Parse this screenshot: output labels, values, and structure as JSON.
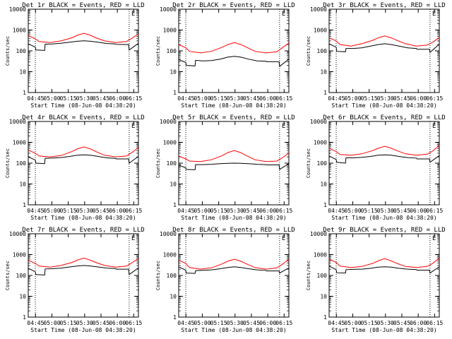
{
  "colors": {
    "events": "#000000",
    "lld": "#ff0000",
    "axis": "#000000",
    "background": "#ffffff"
  },
  "shared": {
    "xlabel": "Start Time (08-Jun-08 04:38:20)",
    "ylabel": "Counts/sec",
    "x_ticks": [
      "04:45",
      "05:00",
      "05:15",
      "05:30",
      "05:45",
      "06:00",
      "06:15"
    ],
    "x_tick_minutes": [
      6.67,
      21.67,
      36.67,
      51.67,
      66.67,
      81.67,
      96.67
    ],
    "xlim_minutes": [
      0,
      101
    ],
    "y_ticks": [
      "1",
      "10",
      "100",
      "1000",
      "10000"
    ],
    "ylim": [
      1,
      10000
    ],
    "yscale": "log",
    "dotted_vlines_minutes": [
      6.5,
      92.5
    ]
  },
  "chart_data": [
    {
      "type": "line",
      "title": "Det 1r BLACK = Events, RED = LLD",
      "legend_corner": "E",
      "series": [
        {
          "name": "Events",
          "x": [
            0,
            6.5,
            7,
            15,
            15.5,
            22,
            30,
            38,
            45,
            51,
            57,
            64,
            72,
            80,
            80.5,
            92,
            92.5,
            101
          ],
          "y": [
            220,
            150,
            110,
            105,
            210,
            215,
            230,
            260,
            290,
            305,
            290,
            260,
            225,
            215,
            205,
            200,
            110,
            230
          ]
        },
        {
          "name": "LLD",
          "x": [
            0,
            6.5,
            10,
            20,
            30,
            40,
            45,
            51,
            57,
            62,
            70,
            80,
            90,
            95,
            101
          ],
          "y": [
            540,
            380,
            280,
            250,
            300,
            420,
            560,
            700,
            560,
            420,
            300,
            250,
            280,
            400,
            650
          ]
        }
      ]
    },
    {
      "type": "line",
      "title": "Det 2r BLACK = Events, RED = LLD",
      "legend_corner": "E",
      "series": [
        {
          "name": "Events",
          "x": [
            0,
            6.5,
            7,
            15,
            15.5,
            22,
            30,
            38,
            45,
            51,
            57,
            64,
            72,
            80,
            80.5,
            92,
            92.5,
            101
          ],
          "y": [
            38,
            28,
            20,
            19,
            35,
            33,
            34,
            40,
            50,
            55,
            50,
            40,
            33,
            32,
            30,
            30,
            18,
            40
          ]
        },
        {
          "name": "LLD",
          "x": [
            0,
            6.5,
            10,
            20,
            30,
            40,
            45,
            51,
            57,
            62,
            70,
            80,
            90,
            95,
            101
          ],
          "y": [
            200,
            140,
            95,
            80,
            95,
            150,
            200,
            250,
            200,
            150,
            95,
            80,
            90,
            140,
            240
          ]
        }
      ]
    },
    {
      "type": "line",
      "title": "Det 3r BLACK = Events, RED = LLD",
      "legend_corner": "E",
      "series": [
        {
          "name": "Events",
          "x": [
            0,
            6.5,
            7,
            15,
            15.5,
            22,
            30,
            38,
            45,
            51,
            57,
            64,
            72,
            80,
            80.5,
            92,
            92.5,
            101
          ],
          "y": [
            220,
            150,
            95,
            90,
            130,
            130,
            140,
            170,
            200,
            220,
            200,
            170,
            140,
            130,
            120,
            120,
            85,
            210
          ]
        },
        {
          "name": "LLD",
          "x": [
            0,
            6.5,
            10,
            20,
            30,
            40,
            45,
            51,
            57,
            62,
            70,
            80,
            90,
            95,
            101
          ],
          "y": [
            420,
            300,
            200,
            170,
            220,
            320,
            420,
            520,
            420,
            320,
            220,
            170,
            190,
            260,
            430
          ]
        }
      ]
    },
    {
      "type": "line",
      "title": "Det 4r BLACK = Events, RED = LLD",
      "legend_corner": "E",
      "series": [
        {
          "name": "Events",
          "x": [
            0,
            6.5,
            7,
            15,
            15.5,
            22,
            30,
            38,
            45,
            51,
            57,
            64,
            72,
            80,
            80.5,
            92,
            92.5,
            101
          ],
          "y": [
            200,
            140,
            100,
            95,
            170,
            175,
            185,
            210,
            240,
            250,
            240,
            210,
            180,
            170,
            160,
            160,
            100,
            210
          ]
        },
        {
          "name": "LLD",
          "x": [
            0,
            6.5,
            10,
            20,
            30,
            40,
            45,
            51,
            57,
            62,
            70,
            80,
            90,
            95,
            101
          ],
          "y": [
            420,
            300,
            220,
            200,
            230,
            360,
            480,
            600,
            480,
            360,
            240,
            200,
            220,
            320,
            560
          ]
        }
      ]
    },
    {
      "type": "line",
      "title": "Det 5r BLACK = Events, RED = LLD",
      "legend_corner": "E",
      "series": [
        {
          "name": "Events",
          "x": [
            0,
            6.5,
            7,
            15,
            15.5,
            22,
            30,
            38,
            45,
            51,
            57,
            64,
            72,
            80,
            80.5,
            92,
            92.5,
            101
          ],
          "y": [
            80,
            60,
            50,
            48,
            85,
            85,
            88,
            95,
            98,
            100,
            98,
            95,
            88,
            85,
            82,
            82,
            50,
            95
          ]
        },
        {
          "name": "LLD",
          "x": [
            0,
            6.5,
            10,
            20,
            30,
            40,
            45,
            51,
            57,
            62,
            70,
            80,
            90,
            95,
            101
          ],
          "y": [
            220,
            160,
            125,
            120,
            145,
            230,
            320,
            400,
            320,
            230,
            145,
            120,
            125,
            180,
            300
          ]
        }
      ]
    },
    {
      "type": "line",
      "title": "Det 6r BLACK = Events, RED = LLD",
      "legend_corner": "E",
      "series": [
        {
          "name": "Events",
          "x": [
            0,
            6.5,
            7,
            15,
            15.5,
            22,
            30,
            38,
            45,
            51,
            57,
            64,
            72,
            80,
            80.5,
            92,
            92.5,
            101
          ],
          "y": [
            220,
            150,
            110,
            100,
            180,
            180,
            190,
            210,
            240,
            250,
            240,
            210,
            185,
            175,
            160,
            160,
            110,
            230
          ]
        },
        {
          "name": "LLD",
          "x": [
            0,
            6.5,
            10,
            20,
            30,
            40,
            45,
            51,
            57,
            62,
            70,
            80,
            90,
            95,
            101
          ],
          "y": [
            520,
            360,
            260,
            240,
            280,
            400,
            520,
            640,
            520,
            400,
            280,
            240,
            270,
            380,
            720
          ]
        }
      ]
    },
    {
      "type": "line",
      "title": "Det 7r BLACK = Events, RED = LLD",
      "legend_corner": "E",
      "series": [
        {
          "name": "Events",
          "x": [
            0,
            6.5,
            7,
            15,
            15.5,
            22,
            30,
            38,
            45,
            51,
            57,
            64,
            72,
            80,
            80.5,
            92,
            92.5,
            101
          ],
          "y": [
            220,
            150,
            110,
            105,
            205,
            210,
            225,
            255,
            285,
            300,
            285,
            255,
            225,
            215,
            200,
            200,
            110,
            230
          ]
        },
        {
          "name": "LLD",
          "x": [
            0,
            6.5,
            10,
            20,
            30,
            40,
            45,
            51,
            57,
            62,
            70,
            80,
            90,
            95,
            101
          ],
          "y": [
            540,
            380,
            280,
            250,
            300,
            420,
            540,
            680,
            540,
            420,
            300,
            250,
            280,
            400,
            650
          ]
        }
      ]
    },
    {
      "type": "line",
      "title": "Det 8r BLACK = Events, RED = LLD",
      "legend_corner": "E",
      "series": [
        {
          "name": "Events",
          "x": [
            0,
            6.5,
            7,
            15,
            15.5,
            22,
            30,
            38,
            45,
            51,
            57,
            64,
            72,
            80,
            80.5,
            92,
            92.5,
            101
          ],
          "y": [
            260,
            180,
            130,
            125,
            170,
            175,
            185,
            210,
            240,
            260,
            240,
            210,
            185,
            175,
            165,
            165,
            130,
            230
          ]
        },
        {
          "name": "LLD",
          "x": [
            0,
            6.5,
            10,
            20,
            30,
            40,
            45,
            51,
            57,
            62,
            70,
            80,
            90,
            95,
            101
          ],
          "y": [
            540,
            380,
            240,
            200,
            230,
            360,
            480,
            600,
            480,
            360,
            240,
            200,
            230,
            340,
            600
          ]
        }
      ]
    },
    {
      "type": "line",
      "title": "Det 9r BLACK = Events, RED = LLD",
      "legend_corner": "E",
      "series": [
        {
          "name": "Events",
          "x": [
            0,
            6.5,
            7,
            15,
            15.5,
            22,
            30,
            38,
            45,
            51,
            57,
            64,
            72,
            80,
            80.5,
            92,
            92.5,
            101
          ],
          "y": [
            280,
            190,
            135,
            130,
            190,
            195,
            200,
            220,
            250,
            260,
            250,
            220,
            200,
            190,
            180,
            180,
            130,
            260
          ]
        },
        {
          "name": "LLD",
          "x": [
            0,
            6.5,
            10,
            20,
            30,
            40,
            45,
            51,
            57,
            62,
            70,
            80,
            90,
            95,
            101
          ],
          "y": [
            600,
            420,
            280,
            240,
            270,
            380,
            500,
            640,
            500,
            380,
            270,
            240,
            270,
            380,
            680
          ]
        }
      ]
    }
  ]
}
